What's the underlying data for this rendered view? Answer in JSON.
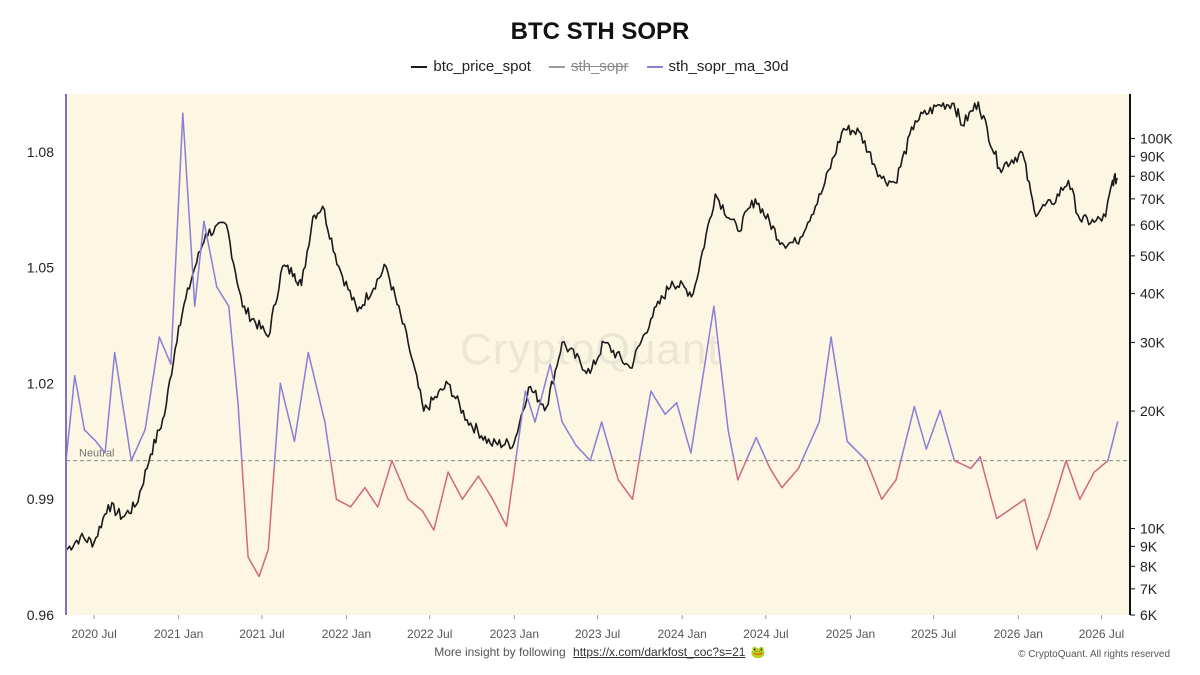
{
  "title": "BTC STH SOPR",
  "legend": [
    {
      "name": "btc_price_spot",
      "color": "#1a1a1a",
      "hidden": false
    },
    {
      "name": "sth_sopr",
      "color": "#9a9a9a",
      "hidden": true
    },
    {
      "name": "sth_sopr_ma_30d",
      "color": "#8a7fd6",
      "hidden": false
    }
  ],
  "watermark": "CryptoQuant",
  "footer": {
    "text": "More insight by following",
    "link": "https://x.com/darkfost_coc?s=21",
    "emoji": "🐸"
  },
  "copyright": "© CryptoQuant. All rights reserved",
  "colors": {
    "background": "#fdf6e3",
    "price": "#1a1a1a",
    "ma_above": "#8a7fd6",
    "ma_below": "#d06a7e",
    "neutral": "#888888",
    "left_axis": "#7b6fd0"
  },
  "chart_data": {
    "type": "line",
    "title": "BTC STH SOPR",
    "x_ticks": [
      "2020 Jul",
      "2021 Jan",
      "2021 Jul",
      "2022 Jan",
      "2022 Jul",
      "2023 Jan",
      "2023 Jul",
      "2024 Jan",
      "2024 Jul",
      "2025 Jan",
      "2025 Jul",
      "2026 Jan",
      "2026 Jul"
    ],
    "x_range": [
      "2020-05-01",
      "2026-09-01"
    ],
    "left_axis": {
      "ticks": [
        "1.08",
        "1.05",
        "1.02",
        "0.99",
        "0.96"
      ],
      "values": [
        1.08,
        1.05,
        1.02,
        0.99,
        0.96
      ],
      "range": [
        0.96,
        1.095
      ]
    },
    "right_axis": {
      "scale": "log",
      "ticks": [
        "100K",
        "90K",
        "80K",
        "70K",
        "60K",
        "50K",
        "40K",
        "30K",
        "20K",
        "10K",
        "9K",
        "8K",
        "7K",
        "6K"
      ],
      "values": [
        100000,
        90000,
        80000,
        70000,
        60000,
        50000,
        40000,
        30000,
        20000,
        10000,
        9000,
        8000,
        7000,
        6000
      ],
      "range": [
        6000,
        130000
      ]
    },
    "neutral": {
      "label": "Neutral",
      "value": 1.0
    },
    "series": [
      {
        "name": "btc_price_spot",
        "axis": "right",
        "points": [
          [
            "2020-05-01",
            8800
          ],
          [
            "2020-06-01",
            9500
          ],
          [
            "2020-07-01",
            9200
          ],
          [
            "2020-08-01",
            11500
          ],
          [
            "2020-09-01",
            10700
          ],
          [
            "2020-10-01",
            11500
          ],
          [
            "2020-11-01",
            15500
          ],
          [
            "2020-12-01",
            19500
          ],
          [
            "2021-01-01",
            33000
          ],
          [
            "2021-02-01",
            45000
          ],
          [
            "2021-03-01",
            57000
          ],
          [
            "2021-04-15",
            60000
          ],
          [
            "2021-05-20",
            37000
          ],
          [
            "2021-07-15",
            31000
          ],
          [
            "2021-08-15",
            47000
          ],
          [
            "2021-09-10",
            45000
          ],
          [
            "2021-09-25",
            42000
          ],
          [
            "2021-10-20",
            63000
          ],
          [
            "2021-11-10",
            67000
          ],
          [
            "2021-12-15",
            47000
          ],
          [
            "2022-01-25",
            36000
          ],
          [
            "2022-03-28",
            47000
          ],
          [
            "2022-05-15",
            30000
          ],
          [
            "2022-06-18",
            20000
          ],
          [
            "2022-08-10",
            23500
          ],
          [
            "2022-09-20",
            19000
          ],
          [
            "2022-11-10",
            16500
          ],
          [
            "2022-12-31",
            16500
          ],
          [
            "2023-02-01",
            23000
          ],
          [
            "2023-03-12",
            20500
          ],
          [
            "2023-04-15",
            30000
          ],
          [
            "2023-06-15",
            25000
          ],
          [
            "2023-07-15",
            30000
          ],
          [
            "2023-09-10",
            25800
          ],
          [
            "2023-10-25",
            34500
          ],
          [
            "2023-12-10",
            43000
          ],
          [
            "2024-01-25",
            40000
          ],
          [
            "2024-03-13",
            72000
          ],
          [
            "2024-05-01",
            58000
          ],
          [
            "2024-06-08",
            70000
          ],
          [
            "2024-08-05",
            54000
          ],
          [
            "2024-09-06",
            54000
          ],
          [
            "2024-10-29",
            72000
          ],
          [
            "2024-12-17",
            106000
          ],
          [
            "2025-01-20",
            104000
          ],
          [
            "2025-03-10",
            79000
          ],
          [
            "2025-04-08",
            77000
          ],
          [
            "2025-05-22",
            111000
          ],
          [
            "2025-07-14",
            122000
          ],
          [
            "2025-08-14",
            123000
          ],
          [
            "2025-09-01",
            108000
          ],
          [
            "2025-10-06",
            124000
          ],
          [
            "2025-11-21",
            84000
          ],
          [
            "2026-01-10",
            92000
          ],
          [
            "2026-02-05",
            65000
          ],
          [
            "2026-03-15",
            68000
          ],
          [
            "2026-04-20",
            78000
          ],
          [
            "2026-05-15",
            62000
          ],
          [
            "2026-06-15",
            61000
          ],
          [
            "2026-07-10",
            63000
          ],
          [
            "2026-07-25",
            78000
          ],
          [
            "2026-08-05",
            79000
          ]
        ]
      },
      {
        "name": "sth_sopr_ma_30d",
        "axis": "left",
        "points": [
          [
            "2020-05-01",
            1.0
          ],
          [
            "2020-05-20",
            1.022
          ],
          [
            "2020-06-10",
            1.008
          ],
          [
            "2020-07-05",
            1.005
          ],
          [
            "2020-07-25",
            1.002
          ],
          [
            "2020-08-15",
            1.028
          ],
          [
            "2020-09-20",
            1.0
          ],
          [
            "2020-10-20",
            1.008
          ],
          [
            "2020-11-20",
            1.032
          ],
          [
            "2020-12-15",
            1.025
          ],
          [
            "2021-01-10",
            1.09
          ],
          [
            "2021-02-05",
            1.04
          ],
          [
            "2021-02-25",
            1.062
          ],
          [
            "2021-03-25",
            1.045
          ],
          [
            "2021-04-20",
            1.04
          ],
          [
            "2021-05-10",
            1.015
          ],
          [
            "2021-06-01",
            0.975
          ],
          [
            "2021-06-25",
            0.97
          ],
          [
            "2021-07-15",
            0.977
          ],
          [
            "2021-08-10",
            1.02
          ],
          [
            "2021-09-10",
            1.005
          ],
          [
            "2021-10-10",
            1.028
          ],
          [
            "2021-11-15",
            1.01
          ],
          [
            "2021-12-10",
            0.99
          ],
          [
            "2022-01-10",
            0.988
          ],
          [
            "2022-02-10",
            0.993
          ],
          [
            "2022-03-10",
            0.988
          ],
          [
            "2022-04-10",
            1.0
          ],
          [
            "2022-05-15",
            0.99
          ],
          [
            "2022-06-15",
            0.987
          ],
          [
            "2022-07-10",
            0.982
          ],
          [
            "2022-08-10",
            0.997
          ],
          [
            "2022-09-10",
            0.99
          ],
          [
            "2022-10-15",
            0.996
          ],
          [
            "2022-11-15",
            0.99
          ],
          [
            "2022-12-15",
            0.983
          ],
          [
            "2023-01-25",
            1.018
          ],
          [
            "2023-02-15",
            1.01
          ],
          [
            "2023-03-20",
            1.025
          ],
          [
            "2023-04-15",
            1.01
          ],
          [
            "2023-05-15",
            1.004
          ],
          [
            "2023-06-15",
            1.0
          ],
          [
            "2023-07-10",
            1.01
          ],
          [
            "2023-08-15",
            0.995
          ],
          [
            "2023-09-15",
            0.99
          ],
          [
            "2023-10-25",
            1.018
          ],
          [
            "2023-11-25",
            1.012
          ],
          [
            "2023-12-20",
            1.015
          ],
          [
            "2024-01-20",
            1.002
          ],
          [
            "2024-03-10",
            1.04
          ],
          [
            "2024-04-10",
            1.008
          ],
          [
            "2024-05-01",
            0.995
          ],
          [
            "2024-06-10",
            1.006
          ],
          [
            "2024-07-10",
            0.998
          ],
          [
            "2024-08-05",
            0.993
          ],
          [
            "2024-09-10",
            0.998
          ],
          [
            "2024-10-25",
            1.01
          ],
          [
            "2024-11-20",
            1.032
          ],
          [
            "2024-12-25",
            1.005
          ],
          [
            "2025-02-05",
            1.0
          ],
          [
            "2025-03-10",
            0.99
          ],
          [
            "2025-04-10",
            0.995
          ],
          [
            "2025-05-20",
            1.014
          ],
          [
            "2025-06-15",
            1.003
          ],
          [
            "2025-07-15",
            1.013
          ],
          [
            "2025-08-15",
            1.0
          ],
          [
            "2025-09-20",
            0.998
          ],
          [
            "2025-10-10",
            1.001
          ],
          [
            "2025-11-15",
            0.985
          ],
          [
            "2025-12-10",
            0.987
          ],
          [
            "2026-01-15",
            0.99
          ],
          [
            "2026-02-10",
            0.977
          ],
          [
            "2026-03-10",
            0.986
          ],
          [
            "2026-04-15",
            1.0
          ],
          [
            "2026-05-15",
            0.99
          ],
          [
            "2026-06-15",
            0.997
          ],
          [
            "2026-07-15",
            1.0
          ],
          [
            "2026-08-05",
            1.01
          ]
        ]
      }
    ]
  }
}
